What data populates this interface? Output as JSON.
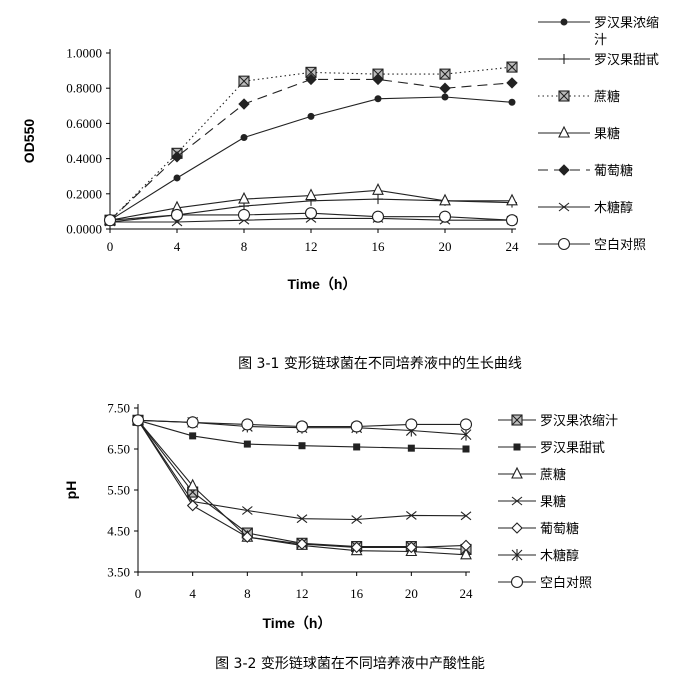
{
  "chart_data": [
    {
      "type": "line",
      "caption": "图 3-1  变形链球菌在不同培养液中的生长曲线",
      "xlabel": "Time（h）",
      "ylabel": "OD550",
      "x": [
        0,
        4,
        8,
        12,
        16,
        20,
        24
      ],
      "x_tick_labels": [
        "0",
        "4",
        "8",
        "12",
        "16",
        "20",
        "24"
      ],
      "ylim": [
        0,
        1.0
      ],
      "y_ticks": [
        0,
        0.2,
        0.4,
        0.6,
        0.8,
        1.0
      ],
      "y_tick_labels": [
        "0.0000",
        "0.2000",
        "0.4000",
        "0.6000",
        "0.8000",
        "1.0000"
      ],
      "legend_position": "right",
      "series": [
        {
          "name": "罗汉果浓缩汁",
          "name_lines": [
            "罗汉果浓缩",
            "汁"
          ],
          "style": "solid",
          "marker": "dot",
          "values": [
            0.05,
            0.29,
            0.52,
            0.64,
            0.74,
            0.75,
            0.72
          ]
        },
        {
          "name": "罗汉果甜甙",
          "style": "solid",
          "marker": "plus",
          "values": [
            0.04,
            0.08,
            0.13,
            0.16,
            0.17,
            0.16,
            0.15
          ]
        },
        {
          "name": "蔗糖",
          "style": "dotted",
          "marker": "boxx",
          "values": [
            0.05,
            0.43,
            0.84,
            0.89,
            0.88,
            0.88,
            0.92
          ]
        },
        {
          "name": "果糖",
          "style": "solid",
          "marker": "triangle",
          "values": [
            0.05,
            0.12,
            0.17,
            0.19,
            0.22,
            0.16,
            0.16
          ]
        },
        {
          "name": "葡萄糖",
          "style": "dashed",
          "marker": "diamond",
          "values": [
            0.05,
            0.41,
            0.71,
            0.85,
            0.85,
            0.8,
            0.83
          ]
        },
        {
          "name": "木糖醇",
          "style": "solid",
          "marker": "x",
          "values": [
            0.04,
            0.04,
            0.05,
            0.06,
            0.06,
            0.05,
            0.05
          ]
        },
        {
          "name": "空白对照",
          "style": "solid",
          "marker": "circle",
          "values": [
            0.05,
            0.08,
            0.08,
            0.09,
            0.07,
            0.07,
            0.05
          ]
        }
      ]
    },
    {
      "type": "line",
      "caption": "图 3-2 变形链球菌在不同培养液中产酸性能",
      "xlabel": "Time（h）",
      "ylabel": "pH",
      "x": [
        0,
        4,
        8,
        12,
        16,
        20,
        24
      ],
      "x_tick_labels": [
        "0",
        "4",
        "8",
        "12",
        "16",
        "20",
        "24"
      ],
      "ylim": [
        3.5,
        7.5
      ],
      "y_ticks": [
        3.5,
        4.5,
        5.5,
        6.5,
        7.5
      ],
      "y_tick_labels": [
        "3.50",
        "4.50",
        "5.50",
        "6.50",
        "7.50"
      ],
      "legend_position": "right",
      "series": [
        {
          "name": "罗汉果浓缩汁",
          "style": "solid",
          "marker": "boxx",
          "values": [
            7.2,
            5.45,
            4.45,
            4.2,
            4.12,
            4.12,
            4.05
          ]
        },
        {
          "name": "罗汉果甜甙",
          "style": "solid",
          "marker": "square",
          "values": [
            7.2,
            6.82,
            6.62,
            6.58,
            6.55,
            6.52,
            6.5
          ]
        },
        {
          "name": "蔗糖",
          "style": "solid",
          "marker": "triangle",
          "values": [
            7.2,
            5.6,
            4.35,
            4.15,
            4.02,
            4.0,
            3.92
          ]
        },
        {
          "name": "果糖",
          "style": "solid",
          "marker": "x",
          "values": [
            7.2,
            5.22,
            5.0,
            4.8,
            4.78,
            4.88,
            4.87
          ]
        },
        {
          "name": "葡萄糖",
          "style": "solid",
          "marker": "diamond",
          "values": [
            7.2,
            5.12,
            4.35,
            4.18,
            4.1,
            4.1,
            4.15
          ]
        },
        {
          "name": "木糖醇",
          "style": "solid",
          "marker": "asterisk",
          "values": [
            7.2,
            7.15,
            7.05,
            7.02,
            7.02,
            6.95,
            6.85
          ]
        },
        {
          "name": "空白对照",
          "style": "solid",
          "marker": "circle",
          "values": [
            7.2,
            7.15,
            7.1,
            7.05,
            7.05,
            7.1,
            7.1
          ]
        }
      ]
    }
  ]
}
